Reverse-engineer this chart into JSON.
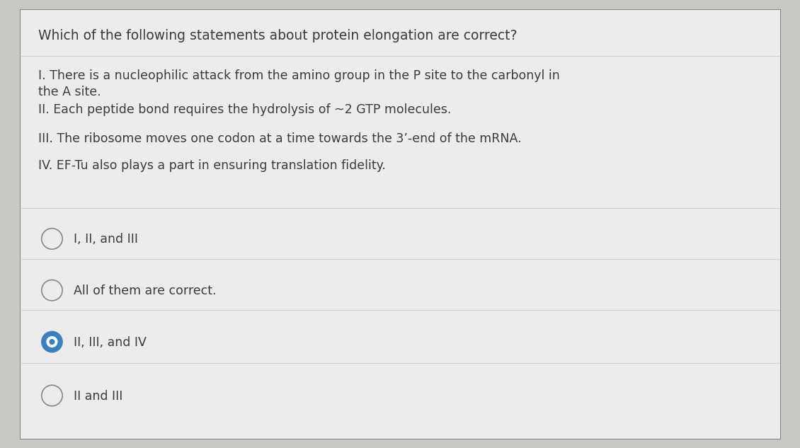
{
  "bg_color": "#c8c8c4",
  "card_color": "#eeecea",
  "text_color": "#3a3a42",
  "question": "Which of the following statements about protein elongation are correct?",
  "statements": [
    "I. There is a nucleophilic attack from the amino group in the P site to the carbonyl in\nthe A site.",
    "II. Each peptide bond requires the hydrolysis of ~2 GTP molecules.",
    "III. The ribosome moves one codon at a time towards the 3’-end of the mRNA.",
    "IV. EF-Tu also plays a part in ensuring translation fidelity."
  ],
  "options": [
    "I, II, and III",
    "All of them are correct.",
    "II, III, and IV",
    "II and III"
  ],
  "selected_option": 2,
  "question_fontsize": 13.5,
  "statement_fontsize": 12.5,
  "option_fontsize": 12.5,
  "selected_color": "#3a7fc1",
  "unselected_color": "#888888",
  "divider_color": "#aaaaaa",
  "border_color": "#888888"
}
